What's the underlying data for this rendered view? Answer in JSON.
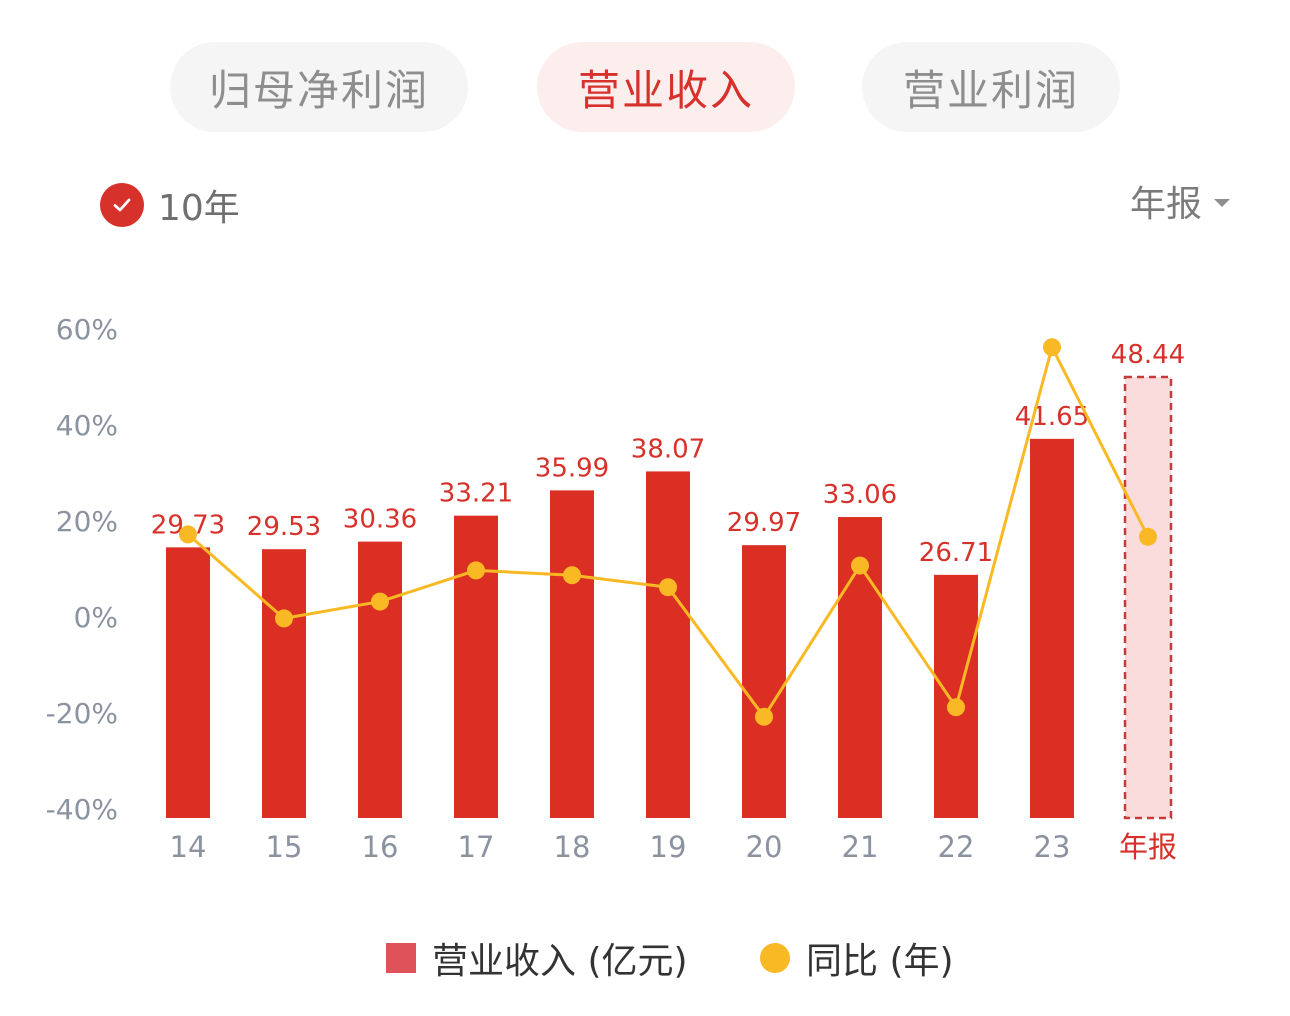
{
  "tabs": [
    {
      "label": "归母净利润",
      "active": false
    },
    {
      "label": "营业收入",
      "active": true
    },
    {
      "label": "营业利润",
      "active": false
    }
  ],
  "years_toggle": {
    "label": "10年",
    "checked": true
  },
  "period_select": {
    "label": "年报"
  },
  "colors": {
    "bar": "#dc2f24",
    "forecast_fill": "#fadcdc",
    "forecast_border": "#c93a3a",
    "line": "#f9b924",
    "value_label": "#d6312b",
    "axis_text": "#8b93a1",
    "accent": "#d6312b"
  },
  "chart_data": {
    "type": "bar+line",
    "categories": [
      "14",
      "15",
      "16",
      "17",
      "18",
      "19",
      "20",
      "21",
      "22",
      "23",
      "年报"
    ],
    "highlight_category": "年报",
    "series": [
      {
        "name": "营业收入 (亿元)",
        "type": "bar",
        "values": [
          29.73,
          29.53,
          30.36,
          33.21,
          35.99,
          38.07,
          29.97,
          33.06,
          26.71,
          41.65,
          48.44
        ],
        "labels": [
          "29.73",
          "29.53",
          "30.36",
          "33.21",
          "35.99",
          "38.07",
          "29.97",
          "33.06",
          "26.71",
          "41.65",
          "48.44"
        ]
      },
      {
        "name": "同比 (年)",
        "type": "line",
        "unit": "%",
        "values": [
          17,
          -0.5,
          3,
          9.5,
          8.5,
          6,
          -21,
          10.5,
          -19,
          56,
          16.5
        ]
      }
    ],
    "y_left": {
      "ticks": [
        "60%",
        "40%",
        "20%",
        "0%",
        "-20%",
        "-40%"
      ],
      "tick_values": [
        60,
        40,
        20,
        0,
        -20,
        -40
      ],
      "range": [
        -40,
        60
      ]
    },
    "bar_range": [
      0,
      58
    ],
    "legend": {
      "position": "bottom"
    },
    "grid": false
  }
}
